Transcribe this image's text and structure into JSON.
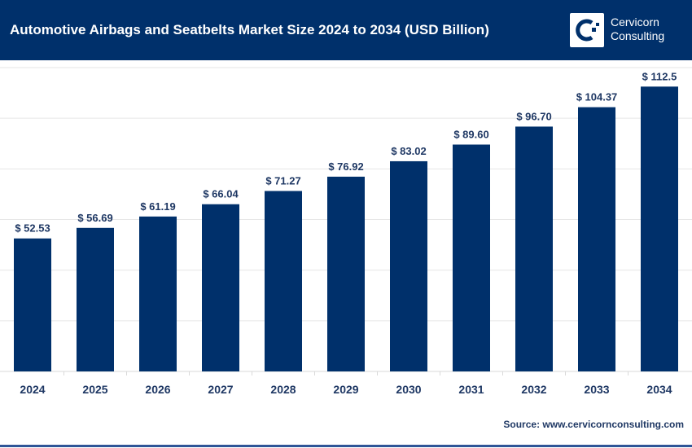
{
  "header": {
    "title": "Automotive Airbags and Seatbelts Market Size 2024 to 2034 (USD Billion)",
    "logo_text_line1": "Cervicorn",
    "logo_text_line2": "Consulting"
  },
  "source": "Source: www.cervicornconsulting.com",
  "colors": {
    "bar": "#00306b",
    "header": "#00306b",
    "label": "#1f3864",
    "grid": "#e6e6e6"
  },
  "chart_data": {
    "type": "bar",
    "title": "Automotive Airbags and Seatbelts Market Size 2024 to 2034 (USD Billion)",
    "categories": [
      "2024",
      "2025",
      "2026",
      "2027",
      "2028",
      "2029",
      "2030",
      "2031",
      "2032",
      "2033",
      "2034"
    ],
    "values": [
      52.53,
      56.69,
      61.19,
      66.04,
      71.27,
      76.92,
      83.02,
      89.6,
      96.7,
      104.37,
      112.5
    ],
    "labels": [
      "$ 52.53",
      "$ 56.69",
      "$ 61.19",
      "$ 66.04",
      "$ 71.27",
      "$ 76.92",
      "$ 83.02",
      "$ 89.60",
      "$ 96.70",
      "$ 104.37",
      "$ 112.5"
    ],
    "ylim": [
      0,
      120
    ],
    "grid": true,
    "xlabel": "",
    "ylabel": ""
  }
}
